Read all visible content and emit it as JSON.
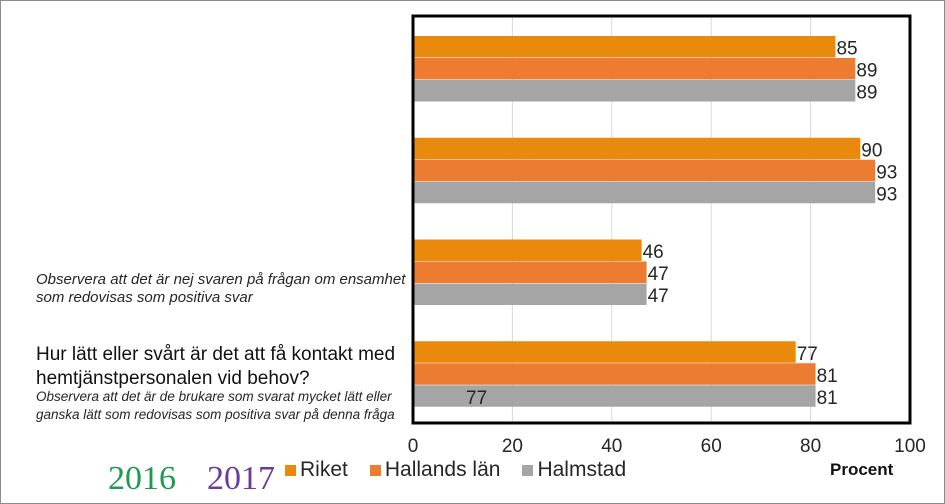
{
  "chart_data": {
    "type": "bar",
    "orientation": "horizontal",
    "categories": [
      "",
      "",
      "",
      "Hur lätt eller svårt är det att få kontakt med hemtjänstpersonalen vid behov?"
    ],
    "series": [
      {
        "name": "Riket",
        "color": "#e98a0c",
        "values": [
          85,
          90,
          46,
          77
        ]
      },
      {
        "name": "Hallands län",
        "color": "#ec7c30",
        "values": [
          89,
          93,
          47,
          81
        ]
      },
      {
        "name": "Halmstad",
        "color": "#a5a5a5",
        "values": [
          89,
          93,
          47,
          81
        ]
      }
    ],
    "xlim": [
      0,
      100
    ],
    "xticks": [
      0,
      20,
      40,
      60,
      80,
      100
    ],
    "xlabel": "Procent",
    "grid": "vertical",
    "legend": "bottom"
  },
  "annotations": {
    "note1": "Observera att det är nej svaren på frågan om ensamhet som redovisas som positiva svar",
    "q4_title": "Hur lätt eller svårt är det att få kontakt med hemtjänstpersonalen vid behov?",
    "note2": "Observera att det är de brukare som svarat mycket lätt eller ganska lätt som redovisas som positiva svar på denna fråga",
    "extra_value": "77",
    "extra_value_color": "#1f9a4f",
    "year1": "2016",
    "year2": "2017"
  }
}
